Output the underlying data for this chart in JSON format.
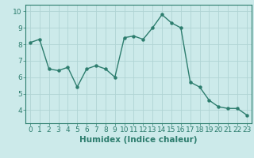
{
  "x": [
    0,
    1,
    2,
    3,
    4,
    5,
    6,
    7,
    8,
    9,
    10,
    11,
    12,
    13,
    14,
    15,
    16,
    17,
    18,
    19,
    20,
    21,
    22,
    23
  ],
  "y": [
    8.1,
    8.3,
    6.5,
    6.4,
    6.6,
    5.4,
    6.5,
    6.7,
    6.5,
    6.0,
    8.4,
    8.5,
    8.3,
    9.0,
    9.8,
    9.3,
    9.0,
    5.7,
    5.4,
    4.6,
    4.2,
    4.1,
    4.1,
    3.7
  ],
  "line_color": "#2d7d6e",
  "marker": "o",
  "marker_size": 2.2,
  "linewidth": 1.0,
  "bg_color": "#cceaea",
  "grid_color": "#b0d4d4",
  "xlabel": "Humidex (Indice chaleur)",
  "ylabel": "",
  "ylim": [
    3.2,
    10.4
  ],
  "xlim": [
    -0.5,
    23.5
  ],
  "yticks": [
    4,
    5,
    6,
    7,
    8,
    9,
    10
  ],
  "xticks": [
    0,
    1,
    2,
    3,
    4,
    5,
    6,
    7,
    8,
    9,
    10,
    11,
    12,
    13,
    14,
    15,
    16,
    17,
    18,
    19,
    20,
    21,
    22,
    23
  ],
  "tick_color": "#2d7d6e",
  "label_color": "#2d7d6e",
  "xlabel_fontsize": 7.5,
  "tick_fontsize": 6.5
}
